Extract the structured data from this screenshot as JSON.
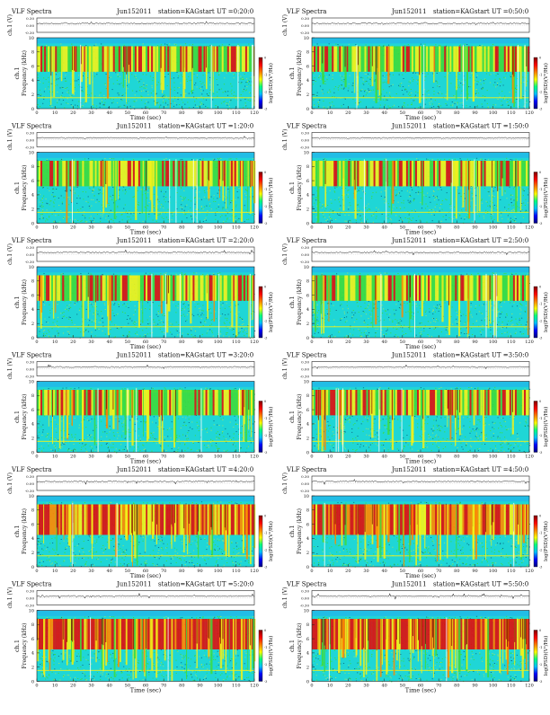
{
  "header_label": "VLF Spectra",
  "station_label": "station=KAG",
  "ylabel_top": "ch.1 (V)",
  "ylabel_spec_1": "ch.1",
  "ylabel_spec_2": "Frequency (kHz)",
  "xlabel": "Time (sec)",
  "colorbar_label": "log(PSD)(V²/Hz)",
  "colors": {
    "background_blue": "#22bde6",
    "cyan": "#1fd6d6",
    "green": "#3ddc3d",
    "yellow": "#f2f21a",
    "orange": "#ff8a00",
    "red": "#e01010",
    "dark_red": "#7a0000",
    "colorbar_stops": [
      "#000080",
      "#0000ff",
      "#00bfff",
      "#00ff80",
      "#ffff00",
      "#ff8000",
      "#ff0000",
      "#800000"
    ]
  },
  "chart_data": [
    {
      "type": "heatmap",
      "date": "Jun152011",
      "start": "start UT =0:20:0",
      "ylim": [
        0,
        10
      ],
      "xlim": [
        0,
        120
      ],
      "top_ylim": [
        -0.3,
        0.3
      ],
      "top_ticks": [
        "0.30",
        "0.00",
        "-0.30"
      ],
      "x_ticks": [
        "0",
        "10",
        "20",
        "30",
        "40",
        "50",
        "60",
        "70",
        "80",
        "90",
        "100",
        "110",
        "120"
      ],
      "y_ticks": [
        "0",
        "2",
        "4",
        "6",
        "8",
        "10"
      ],
      "colorbar_ticks": [
        "0",
        "-1",
        "-2",
        "-3"
      ],
      "intensity": 1
    },
    {
      "type": "heatmap",
      "date": "Jun152011",
      "start": "start UT =0:50:0",
      "ylim": [
        0,
        10
      ],
      "xlim": [
        0,
        120
      ],
      "top_ylim": [
        -0.3,
        0.3
      ],
      "top_ticks": [
        "0.30",
        "0.00",
        "-0.30"
      ],
      "x_ticks": [
        "0",
        "10",
        "20",
        "30",
        "40",
        "50",
        "60",
        "70",
        "80",
        "90",
        "100",
        "110",
        "120"
      ],
      "y_ticks": [
        "0",
        "2",
        "4",
        "6",
        "8",
        "10"
      ],
      "colorbar_ticks": [
        "0",
        "-1",
        "-2",
        "-3"
      ],
      "intensity": 1
    },
    {
      "type": "heatmap",
      "date": "Jun152011",
      "start": "start UT =1:20:0",
      "ylim": [
        0,
        10
      ],
      "xlim": [
        0,
        120
      ],
      "top_ylim": [
        -0.3,
        0.3
      ],
      "top_ticks": [
        "0.30",
        "0.00",
        "-0.30"
      ],
      "x_ticks": [
        "0",
        "10",
        "20",
        "30",
        "40",
        "50",
        "60",
        "70",
        "80",
        "90",
        "100",
        "110",
        "120"
      ],
      "y_ticks": [
        "0",
        "2",
        "4",
        "6",
        "8",
        "10"
      ],
      "colorbar_ticks": [
        "0",
        "-1",
        "-2",
        "-3"
      ],
      "intensity": 1
    },
    {
      "type": "heatmap",
      "date": "Jun152011",
      "start": "start UT =1:50:0",
      "ylim": [
        0,
        10
      ],
      "xlim": [
        0,
        120
      ],
      "top_ylim": [
        -0.3,
        0.3
      ],
      "top_ticks": [
        "0.30",
        "0.00",
        "-0.30"
      ],
      "x_ticks": [
        "0",
        "10",
        "20",
        "30",
        "40",
        "50",
        "60",
        "70",
        "80",
        "90",
        "100",
        "110",
        "120"
      ],
      "y_ticks": [
        "0",
        "2",
        "4",
        "6",
        "8",
        "10"
      ],
      "colorbar_ticks": [
        "0",
        "-1",
        "-2",
        "-3"
      ],
      "intensity": 1
    },
    {
      "type": "heatmap",
      "date": "Jun152011",
      "start": "start UT =2:20:0",
      "ylim": [
        0,
        10
      ],
      "xlim": [
        0,
        120
      ],
      "top_ylim": [
        -0.3,
        0.3
      ],
      "top_ticks": [
        "0.30",
        "0.00",
        "-0.30"
      ],
      "x_ticks": [
        "0",
        "10",
        "20",
        "30",
        "40",
        "50",
        "60",
        "70",
        "80",
        "90",
        "100",
        "110",
        "120"
      ],
      "y_ticks": [
        "0",
        "2",
        "4",
        "6",
        "8",
        "10"
      ],
      "colorbar_ticks": [
        "0",
        "-1",
        "-2",
        "-3"
      ],
      "intensity": 1
    },
    {
      "type": "heatmap",
      "date": "Jun152011",
      "start": "start UT =2:50:0",
      "ylim": [
        0,
        10
      ],
      "xlim": [
        0,
        120
      ],
      "top_ylim": [
        -0.3,
        0.3
      ],
      "top_ticks": [
        "0.30",
        "0.00",
        "-0.30"
      ],
      "x_ticks": [
        "0",
        "10",
        "20",
        "30",
        "40",
        "50",
        "60",
        "70",
        "80",
        "90",
        "100",
        "110",
        "120"
      ],
      "y_ticks": [
        "0",
        "2",
        "4",
        "6",
        "8",
        "10"
      ],
      "colorbar_ticks": [
        "0",
        "-1",
        "-2",
        "-3"
      ],
      "intensity": 1
    },
    {
      "type": "heatmap",
      "date": "Jun152011",
      "start": "start UT =3:20:0",
      "ylim": [
        0,
        10
      ],
      "xlim": [
        0,
        120
      ],
      "top_ylim": [
        -0.3,
        0.3
      ],
      "top_ticks": [
        "0.30",
        "0.00",
        "-0.30"
      ],
      "x_ticks": [
        "0",
        "10",
        "20",
        "30",
        "40",
        "50",
        "60",
        "70",
        "80",
        "90",
        "100",
        "110",
        "120"
      ],
      "y_ticks": [
        "0",
        "2",
        "4",
        "6",
        "8",
        "10"
      ],
      "colorbar_ticks": [
        "0",
        "-1",
        "-2",
        "-3"
      ],
      "intensity": 1
    },
    {
      "type": "heatmap",
      "date": "Jun152011",
      "start": "start UT =3:50:0",
      "ylim": [
        0,
        10
      ],
      "xlim": [
        0,
        120
      ],
      "top_ylim": [
        -0.3,
        0.3
      ],
      "top_ticks": [
        "0.30",
        "0.00",
        "-0.30"
      ],
      "x_ticks": [
        "0",
        "10",
        "20",
        "30",
        "40",
        "50",
        "60",
        "70",
        "80",
        "90",
        "100",
        "110",
        "120"
      ],
      "y_ticks": [
        "0",
        "2",
        "4",
        "6",
        "8",
        "10"
      ],
      "colorbar_ticks": [
        "0",
        "-1",
        "-2",
        "-3"
      ],
      "intensity": 1
    },
    {
      "type": "heatmap",
      "date": "Jun152011",
      "start": "start UT =4:20:0",
      "ylim": [
        0,
        10
      ],
      "xlim": [
        0,
        120
      ],
      "top_ylim": [
        -0.3,
        0.3
      ],
      "top_ticks": [
        "0.30",
        "0.00",
        "-0.30"
      ],
      "x_ticks": [
        "0",
        "10",
        "20",
        "30",
        "40",
        "50",
        "60",
        "70",
        "80",
        "90",
        "100",
        "110",
        "120"
      ],
      "y_ticks": [
        "0",
        "2",
        "4",
        "6",
        "8",
        "10"
      ],
      "colorbar_ticks": [
        "0",
        "-1",
        "-2",
        "-3"
      ],
      "intensity": 2
    },
    {
      "type": "heatmap",
      "date": "Jun152011",
      "start": "start UT =4:50:0",
      "ylim": [
        0,
        10
      ],
      "xlim": [
        0,
        120
      ],
      "top_ylim": [
        -0.3,
        0.3
      ],
      "top_ticks": [
        "0.30",
        "0.00",
        "-0.30"
      ],
      "x_ticks": [
        "0",
        "10",
        "20",
        "30",
        "40",
        "50",
        "60",
        "70",
        "80",
        "90",
        "100",
        "110",
        "120"
      ],
      "y_ticks": [
        "0",
        "2",
        "4",
        "6",
        "8",
        "10"
      ],
      "colorbar_ticks": [
        "0",
        "-1",
        "-2",
        "-3"
      ],
      "intensity": 2
    },
    {
      "type": "heatmap",
      "date": "Jun152011",
      "start": "start UT =5:20:0",
      "ylim": [
        0,
        10
      ],
      "xlim": [
        0,
        120
      ],
      "top_ylim": [
        -0.3,
        0.3
      ],
      "top_ticks": [
        "0.30",
        "0.00",
        "-0.30"
      ],
      "x_ticks": [
        "0",
        "10",
        "20",
        "30",
        "40",
        "50",
        "60",
        "70",
        "80",
        "90",
        "100",
        "110",
        "120"
      ],
      "y_ticks": [
        "0",
        "2",
        "4",
        "6",
        "8",
        "10"
      ],
      "colorbar_ticks": [
        "0",
        "-1",
        "-2",
        "-3"
      ],
      "intensity": 3
    },
    {
      "type": "heatmap",
      "date": "Jun152011",
      "start": "start UT =5:50:0",
      "ylim": [
        0,
        10
      ],
      "xlim": [
        0,
        120
      ],
      "top_ylim": [
        -0.3,
        0.3
      ],
      "top_ticks": [
        "0.30",
        "0.00",
        "-0.30"
      ],
      "x_ticks": [
        "0",
        "10",
        "20",
        "30",
        "40",
        "50",
        "60",
        "70",
        "80",
        "90",
        "100",
        "110",
        "120"
      ],
      "y_ticks": [
        "0",
        "2",
        "4",
        "6",
        "8",
        "10"
      ],
      "colorbar_ticks": [
        "0",
        "-1",
        "-2",
        "-3"
      ],
      "intensity": 3
    }
  ]
}
